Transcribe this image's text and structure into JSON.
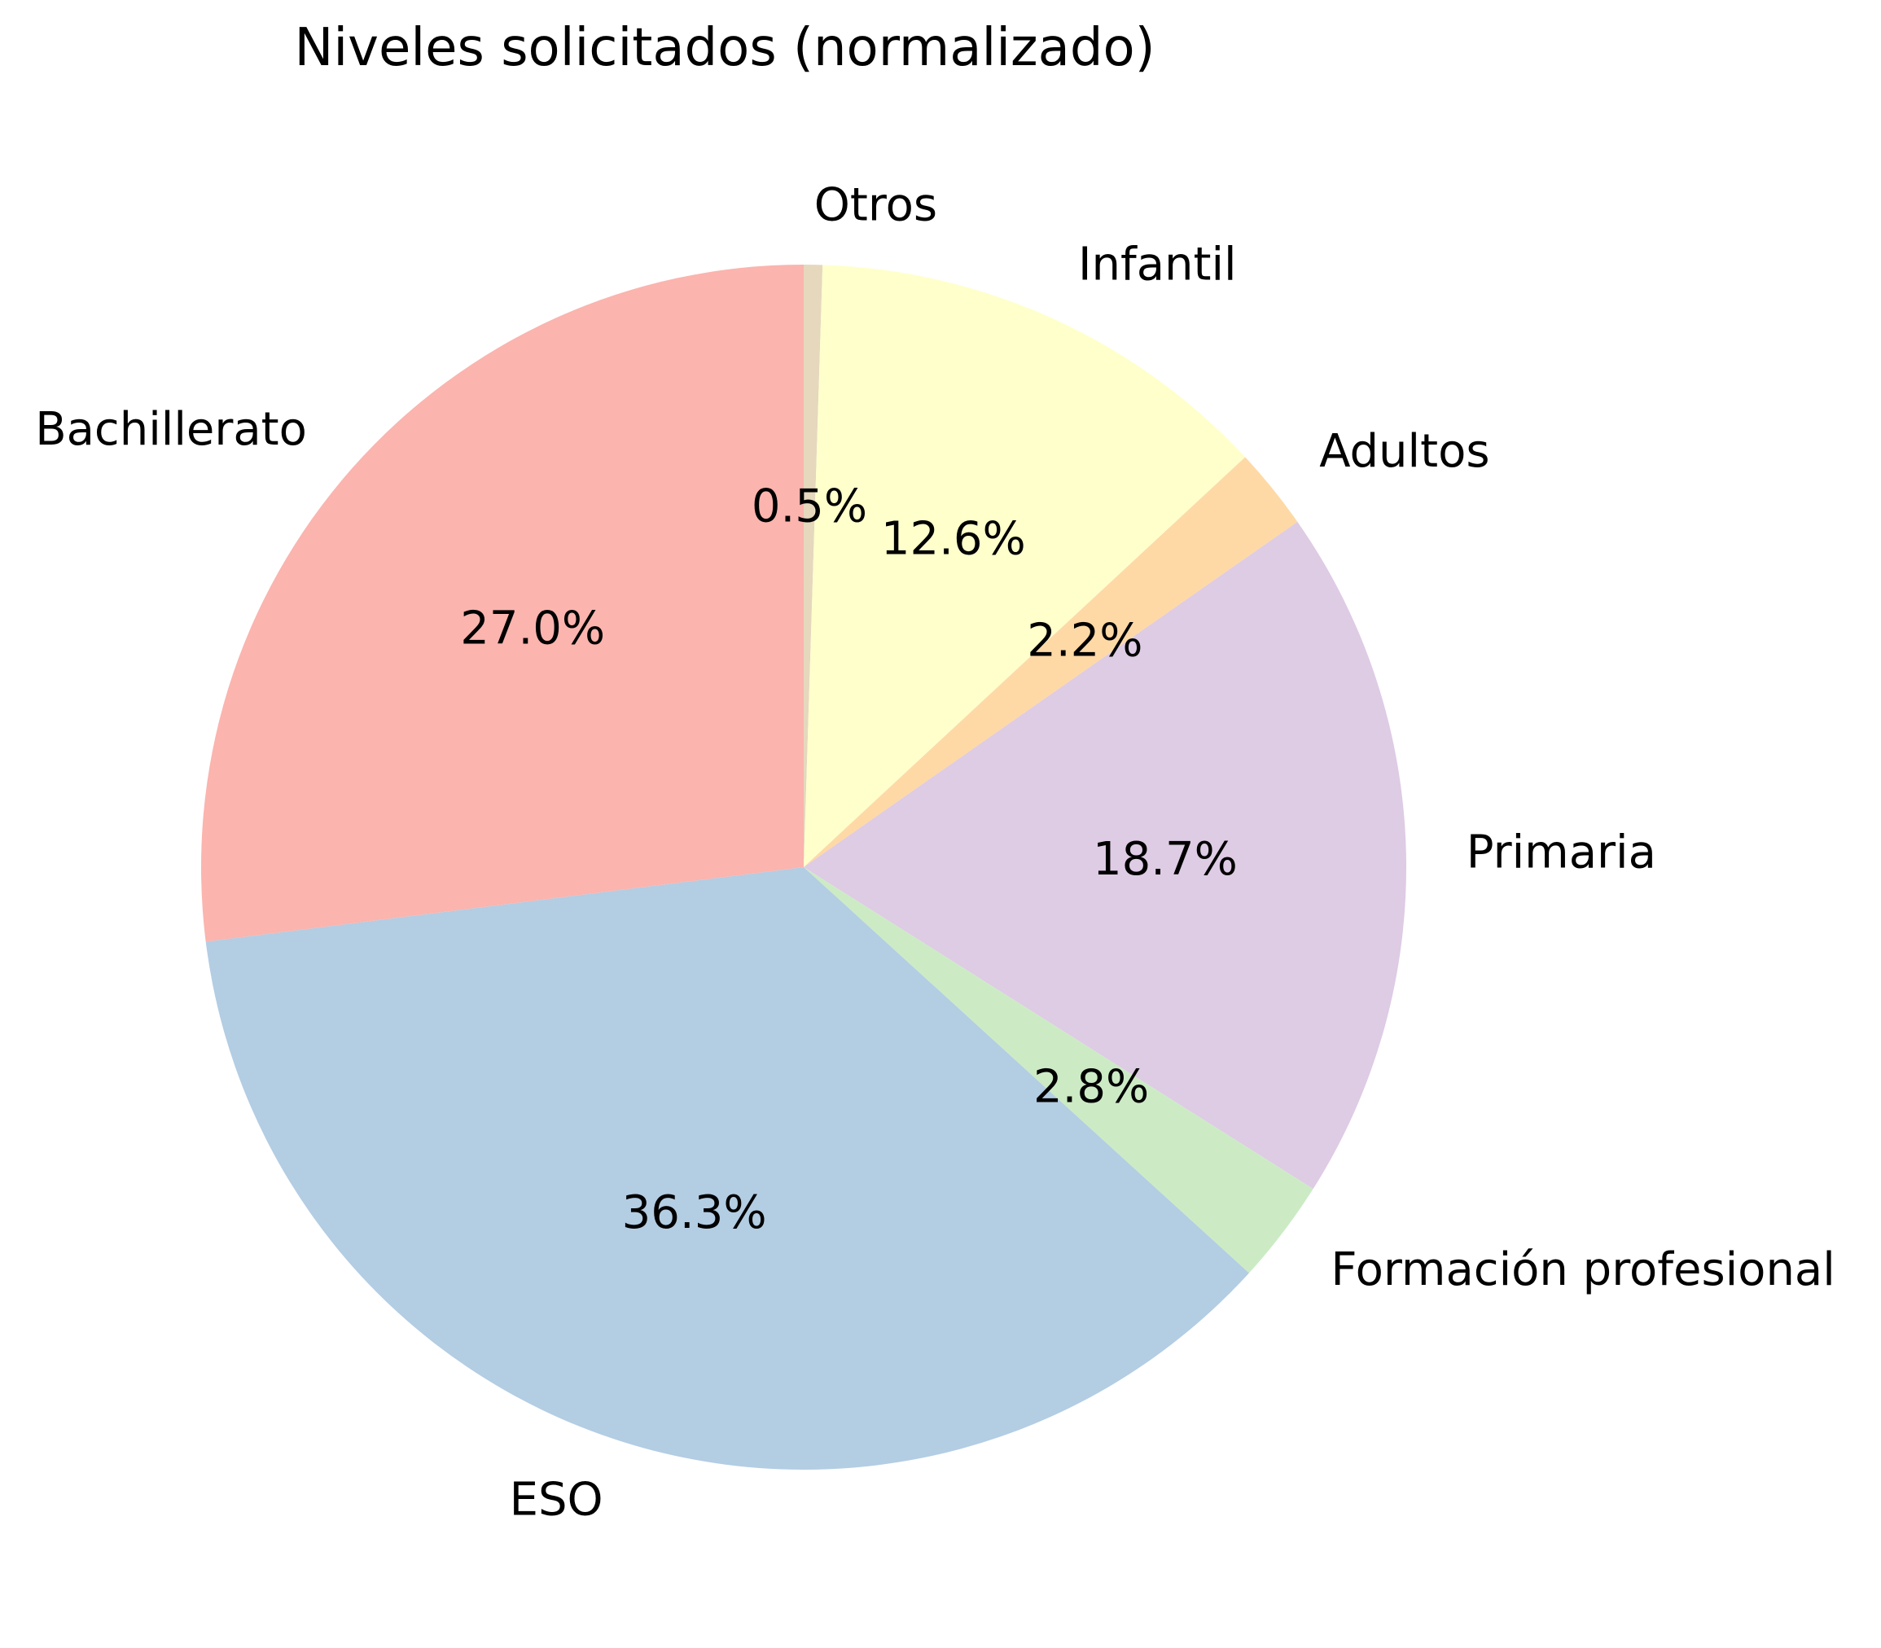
{
  "chart_data": {
    "type": "pie",
    "title": "Niveles solicitados (normalizado)",
    "background": "#ffffff",
    "text_color": "#000000",
    "start": "top",
    "direction": "clockwise",
    "label_distance": 1.1,
    "pct_distance": 0.6,
    "legend": "none",
    "categories": [
      "Otros",
      "Infantil",
      "Adultos",
      "Primaria",
      "Formación profesional",
      "ESO",
      "Bachillerato"
    ],
    "values": [
      0.5,
      12.6,
      2.2,
      18.7,
      2.8,
      36.3,
      27.0
    ],
    "slices": [
      {
        "label": "Otros",
        "value": 0.5,
        "pct_text": "0.5%",
        "color": "#e5d8bd"
      },
      {
        "label": "Infantil",
        "value": 12.6,
        "pct_text": "12.6%",
        "color": "#ffffcc"
      },
      {
        "label": "Adultos",
        "value": 2.2,
        "pct_text": "2.2%",
        "color": "#fed9a6"
      },
      {
        "label": "Primaria",
        "value": 18.7,
        "pct_text": "18.7%",
        "color": "#decbe4"
      },
      {
        "label": "Formación profesional",
        "value": 2.8,
        "pct_text": "2.8%",
        "color": "#ccebc5"
      },
      {
        "label": "ESO",
        "value": 36.3,
        "pct_text": "36.3%",
        "color": "#b3cde3"
      },
      {
        "label": "Bachillerato",
        "value": 27.0,
        "pct_text": "27.0%",
        "color": "#fbb4ae"
      }
    ]
  }
}
